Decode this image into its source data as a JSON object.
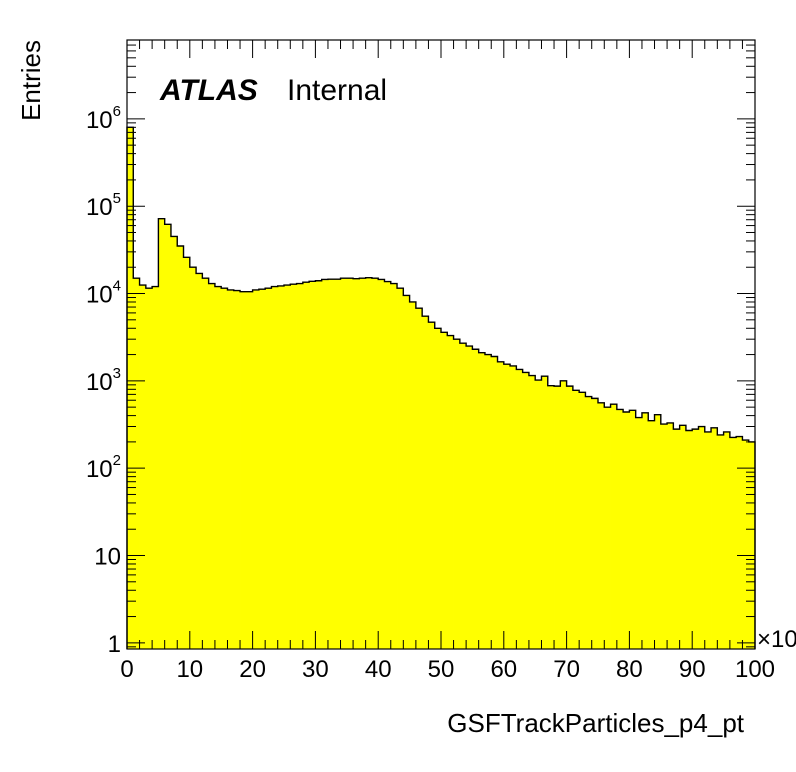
{
  "chart_data": {
    "type": "bar",
    "histogram_style": "step-filled",
    "fill_color": "#ffff00",
    "line_color": "#000000",
    "y_scale": "log",
    "x_range": [
      0,
      100
    ],
    "y_range": [
      0.85,
      8000000
    ],
    "bin_width": 1,
    "xlabel": "GSFTrackParticles_p4_pt",
    "ylabel": "Entries",
    "x_multiplier": "×10",
    "x_tick_labels": [
      "0",
      "10",
      "20",
      "30",
      "40",
      "50",
      "60",
      "70",
      "80",
      "90",
      "100"
    ],
    "y_tick_labels": [
      {
        "base": "1",
        "exp": ""
      },
      {
        "base": "10",
        "exp": ""
      },
      {
        "base": "10",
        "exp": "2"
      },
      {
        "base": "10",
        "exp": "3"
      },
      {
        "base": "10",
        "exp": "4"
      },
      {
        "base": "10",
        "exp": "5"
      },
      {
        "base": "10",
        "exp": "6"
      }
    ],
    "annotation": {
      "experiment": "ATLAS",
      "status": "Internal"
    },
    "values": [
      800000,
      15000,
      12500,
      11500,
      12000,
      72000,
      62000,
      45000,
      35000,
      26000,
      20000,
      17000,
      15000,
      13000,
      12000,
      11500,
      11000,
      10800,
      10500,
      10500,
      11000,
      11200,
      11500,
      12000,
      12200,
      12500,
      12800,
      13000,
      13500,
      13800,
      14000,
      14500,
      14600,
      14600,
      15000,
      15000,
      14800,
      15000,
      15200,
      15000,
      14500,
      13700,
      13000,
      11500,
      9500,
      8000,
      6800,
      5500,
      4700,
      4000,
      3600,
      3300,
      3000,
      2700,
      2500,
      2300,
      2100,
      2000,
      1900,
      1650,
      1550,
      1480,
      1350,
      1250,
      1150,
      1020,
      1130,
      880,
      870,
      1000,
      870,
      780,
      740,
      660,
      630,
      560,
      500,
      540,
      470,
      440,
      460,
      380,
      430,
      350,
      410,
      320,
      330,
      280,
      310,
      270,
      280,
      300,
      260,
      290,
      240,
      260,
      225,
      230,
      210,
      200
    ]
  }
}
